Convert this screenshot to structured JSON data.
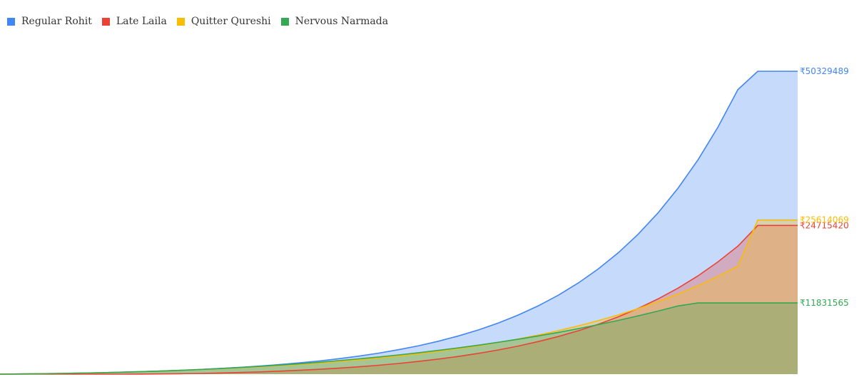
{
  "chart_data": {
    "type": "area",
    "title": "",
    "xlabel": "",
    "ylabel": "",
    "grid": false,
    "legend": "top-left",
    "ylim": [
      0,
      52000000
    ],
    "x_points": 41,
    "series": [
      {
        "name": "Regular Rohit",
        "color": "#4285F4",
        "fill": "rgba(66,133,244,0.30)",
        "final_value": 50329489,
        "end_label": "₹50329489",
        "values": [
          0,
          31000,
          69000,
          116000,
          171000,
          237000,
          315000,
          405000,
          510000,
          632000,
          773000,
          935000,
          1122000,
          1337000,
          1584000,
          1868000,
          2194000,
          2569000,
          3001000,
          3498000,
          4069000,
          4727000,
          5484000,
          6355000,
          7358000,
          8512000,
          9839000,
          11367000,
          13125000,
          15149000,
          17479000,
          20161000,
          23249000,
          26804000,
          30897000,
          35609000,
          41034000,
          47280000,
          50329489,
          50329489,
          50329489
        ]
      },
      {
        "name": "Late Laila",
        "color": "#EA4335",
        "fill": "rgba(234,67,53,0.30)",
        "final_value": 24715420,
        "end_label": "₹24715420",
        "values": [
          0,
          0,
          0,
          0,
          0,
          0,
          0,
          12000,
          36000,
          73000,
          124000,
          190000,
          272000,
          372000,
          493000,
          636000,
          803000,
          998000,
          1223000,
          1483000,
          1780000,
          2120000,
          2508000,
          2951000,
          3454000,
          4027000,
          4678000,
          5418000,
          6258000,
          7212000,
          8295000,
          9524000,
          10918000,
          12500000,
          14296000,
          16333000,
          18646000,
          21271000,
          24715420,
          24715420,
          24715420
        ]
      },
      {
        "name": "Quitter Qureshi",
        "color": "#FBBC04",
        "fill": "rgba(251,188,4,0.30)",
        "final_value": 25614069,
        "end_label": "₹25614069",
        "values": [
          0,
          31000,
          69000,
          116000,
          171000,
          237000,
          315000,
          405000,
          510000,
          632000,
          765000,
          905000,
          1061000,
          1233000,
          1421000,
          1628000,
          1856000,
          2107000,
          2383000,
          2687000,
          3021000,
          3389000,
          3793000,
          4238000,
          4727000,
          5266000,
          5858000,
          6510000,
          7227000,
          8016000,
          8884000,
          9838000,
          10888000,
          12043000,
          13314000,
          14711000,
          16249000,
          17940000,
          25614069,
          25614069,
          25614069
        ]
      },
      {
        "name": "Nervous Narmada",
        "color": "#34A853",
        "fill": "rgba(52,168,83,0.30)",
        "final_value": 11831565,
        "end_label": "₹11831565",
        "values": [
          0,
          31000,
          69000,
          116000,
          171000,
          237000,
          315000,
          405000,
          510000,
          632000,
          771000,
          927000,
          1100000,
          1291000,
          1501000,
          1730000,
          1979000,
          2249000,
          2541000,
          2856000,
          3196000,
          3561000,
          3952000,
          4372000,
          4821000,
          5301000,
          5814000,
          6361000,
          6945000,
          7567000,
          8229000,
          8934000,
          9685000,
          10483000,
          11331000,
          11831565,
          11831565,
          11831565,
          11831565,
          11831565,
          11831565
        ]
      }
    ]
  }
}
